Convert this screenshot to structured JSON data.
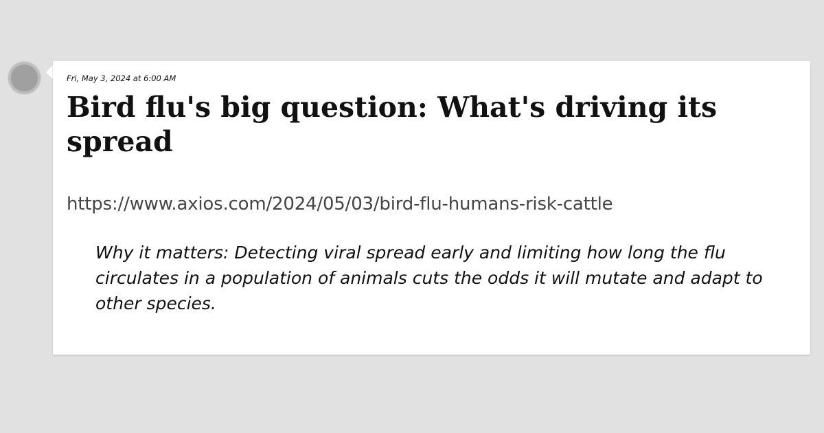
{
  "post": {
    "timestamp": "Fri, May 3, 2024 at 6:00 AM",
    "title": "Bird flu's big question: What's driving its spread",
    "url": "https://www.axios.com/2024/05/03/bird-flu-humans-risk-cattle",
    "excerpt": "Why it matters: Detecting viral spread early and limiting how long the flu circulates in a population of animals cuts the odds it will mutate and adapt to other species."
  },
  "colors": {
    "background": "#e1e1e1",
    "card": "#ffffff",
    "avatar": "#a0a0a0",
    "text": "#111111",
    "url_text": "#444444"
  },
  "icons": {
    "avatar": "avatar-circle"
  }
}
